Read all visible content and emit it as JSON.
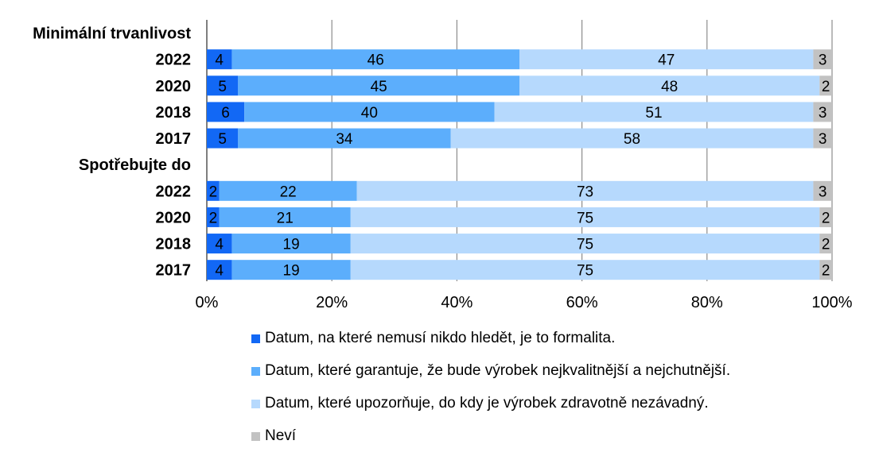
{
  "chart_data": {
    "type": "bar",
    "orientation": "horizontal",
    "stacked": "percent",
    "groups": [
      {
        "label": "Minimální trvanlivost",
        "categories": [
          "2022",
          "2020",
          "2018",
          "2017"
        ]
      },
      {
        "label": "Spotřebujte do",
        "categories": [
          "2022",
          "2020",
          "2018",
          "2017"
        ]
      }
    ],
    "series": [
      {
        "name": "Datum, na které nemusí nikdo hledět, je to formalita.",
        "color": "#1268f5",
        "values": [
          4,
          5,
          6,
          5,
          2,
          2,
          4,
          4
        ]
      },
      {
        "name": "Datum, které garantuje, že bude výrobek nejkvalitnější a nejchutnější.",
        "color": "#5caefc",
        "values": [
          46,
          45,
          40,
          34,
          22,
          21,
          19,
          19
        ]
      },
      {
        "name": "Datum, které upozorňuje, do kdy je výrobek zdravotně nezávadný.",
        "color": "#b6d9fd",
        "values": [
          47,
          48,
          51,
          58,
          73,
          75,
          75,
          75
        ]
      },
      {
        "name": "Neví",
        "color": "#c2c2c2",
        "values": [
          3,
          2,
          3,
          3,
          3,
          2,
          2,
          2
        ]
      }
    ],
    "xlim": [
      0,
      100
    ],
    "x_ticks": [
      "0%",
      "20%",
      "40%",
      "60%",
      "80%",
      "100%"
    ],
    "grid": true,
    "legend_position": "bottom"
  }
}
